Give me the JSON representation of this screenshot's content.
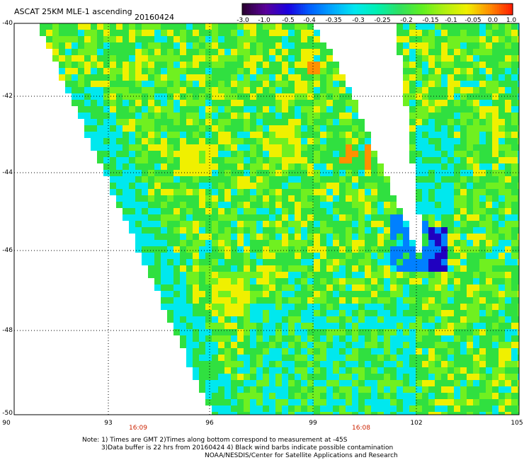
{
  "header": {
    "title": "ASCAT 25KM MLE-1 ascending",
    "date": "20160424"
  },
  "colorbar": {
    "labels": [
      "-3.0",
      "-1.0",
      "-0.5",
      "-0.4",
      "-0.35",
      "-0.3",
      "-0.25",
      "-0.2",
      "-0.15",
      "-0.1",
      "-0.05",
      "0.0",
      "1.0"
    ],
    "colors": [
      "#2a0033",
      "#5a009a",
      "#1b00e0",
      "#0060ff",
      "#00a8ff",
      "#00e8f0",
      "#00f0b0",
      "#30e060",
      "#60f020",
      "#b0f010",
      "#f0f000",
      "#ff9000",
      "#ff2000"
    ]
  },
  "map": {
    "lat_labels": [
      "-40",
      "-42",
      "-44",
      "-46",
      "-48",
      "-50"
    ],
    "lon_labels": [
      "90",
      "93",
      "96",
      "99",
      "102",
      "105"
    ],
    "time_labels": [
      "16:09",
      "16:08"
    ],
    "background_color": "#ffffff",
    "swath_colors": {
      "cyan": "#00e8ee",
      "green": "#30e040",
      "lime": "#70f020",
      "yellow": "#f0f000",
      "orange": "#ff9000",
      "blue": "#0080ff",
      "darkblue": "#2000c0"
    }
  },
  "notes": {
    "line1": "Note: 1) Times are GMT 2)Times along bottom correspond to measurement at -45S",
    "line2": "3)Data buffer is 22 hrs from 20160424 4) Black wind barbs indicate possible contamination",
    "line3": "NOAA/NESDIS/Center for Satellite Applications and Research"
  }
}
